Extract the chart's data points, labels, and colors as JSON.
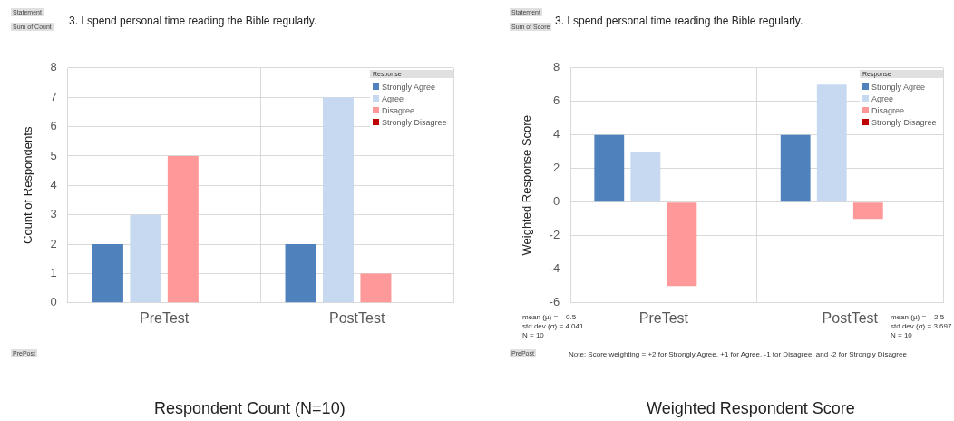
{
  "chart_data": [
    {
      "type": "bar",
      "title": "3. I spend personal time reading the Bible regularly.",
      "ylabel": "Count of Respondents",
      "legend_title": "Response",
      "categories": [
        "PreTest",
        "PostTest"
      ],
      "series": [
        {
          "name": "Strongly Agree",
          "color": "#4f81bd",
          "values": [
            2,
            2
          ]
        },
        {
          "name": "Agree",
          "color": "#c6d9f1",
          "values": [
            3,
            7
          ]
        },
        {
          "name": "Disagree",
          "color": "#ff9999",
          "values": [
            5,
            1
          ]
        },
        {
          "name": "Strongly Disagree",
          "color": "#c00000",
          "values": [
            null,
            null
          ]
        }
      ],
      "ylim": [
        0,
        8
      ],
      "yticks": [
        0,
        1,
        2,
        3,
        4,
        5,
        6,
        7,
        8
      ],
      "grid": true,
      "legend": "top right",
      "annotations": [
        "Statement",
        "Sum of Count",
        "PrePost",
        "Respondent Count (N=10)"
      ]
    },
    {
      "type": "bar",
      "title": "3. I spend personal time reading the Bible regularly.",
      "ylabel": "Weighted Response Score",
      "legend_title": "Response",
      "categories": [
        "PreTest",
        "PostTest"
      ],
      "series": [
        {
          "name": "Strongly Agree",
          "color": "#4f81bd",
          "values": [
            4,
            4
          ]
        },
        {
          "name": "Agree",
          "color": "#c6d9f1",
          "values": [
            3,
            7
          ]
        },
        {
          "name": "Disagree",
          "color": "#ff9999",
          "values": [
            -5,
            -1
          ]
        },
        {
          "name": "Strongly Disagree",
          "color": "#c00000",
          "values": [
            null,
            null
          ]
        }
      ],
      "ylim": [
        -6,
        8
      ],
      "yticks": [
        -6,
        -4,
        -2,
        0,
        2,
        4,
        6,
        8
      ],
      "grid": true,
      "legend": "top right",
      "annotations": [
        "Statement",
        "Sum of Score",
        "PrePost",
        "mean (µ) =    0.5\nstd dev (σ) = 4.041\nN = 10",
        "mean (µ) =    2.5\nstd dev (σ) = 3.697\nN = 10",
        "Note: Score weighting = +2 for Strongly Agree, +1 for Agree, -1 for Disagree, and -2 for Strongly Disagree",
        "Weighted Respondent Score"
      ]
    }
  ]
}
